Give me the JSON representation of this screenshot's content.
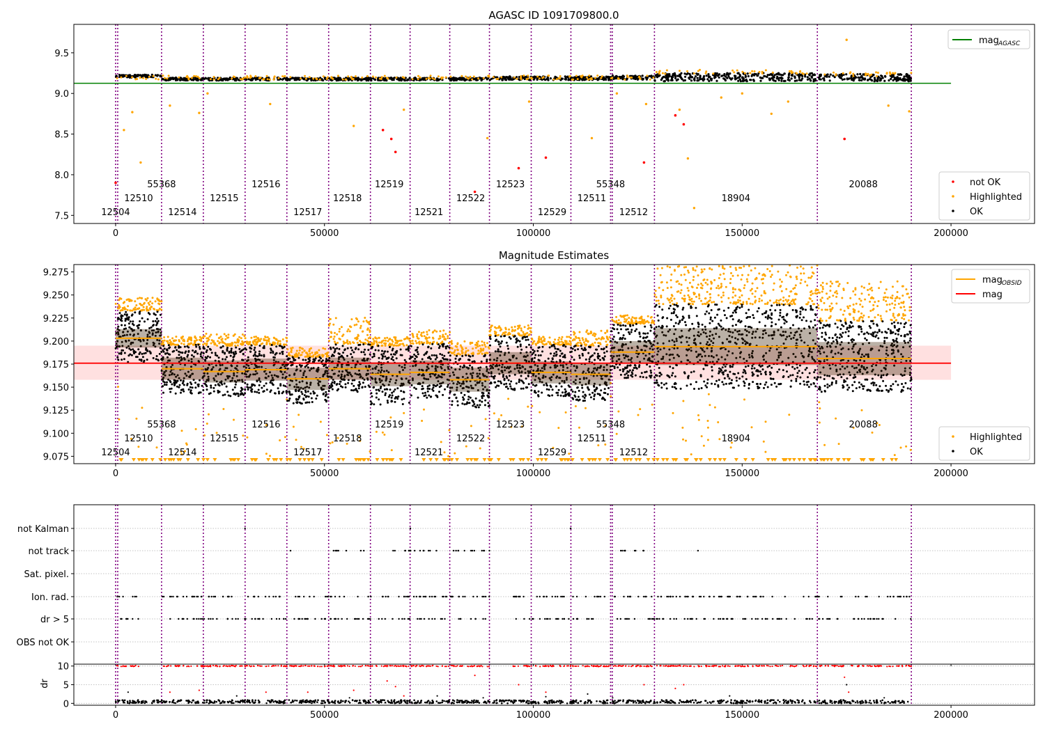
{
  "figure": {
    "colors": {
      "ok": "#000000",
      "highlighted": "#ffa500",
      "not_ok": "#ff0000",
      "mag_agasc": "#008000",
      "mag": "#ff0000",
      "mag_obsid": "#ffa500",
      "obs_boundary": "#800080",
      "band": "#ffcccc",
      "grid": "#b0b0b0"
    }
  },
  "chart_data": [
    {
      "type": "scatter",
      "title": "AGASC ID 1091709800.0",
      "xlim": [
        -10000,
        220000
      ],
      "ylim": [
        7.4,
        9.85
      ],
      "xticks": [
        0,
        50000,
        100000,
        150000,
        200000
      ],
      "xtick_labels": [
        "0",
        "50000",
        "100000",
        "150000",
        "200000"
      ],
      "yticks": [
        7.5,
        8.0,
        8.5,
        9.0,
        9.5
      ],
      "ytick_labels": [
        "7.5",
        "8.0",
        "8.5",
        "9.0",
        "9.5"
      ],
      "mag_agasc": 9.125,
      "mag_agasc_xrange": [
        -10000,
        200000
      ],
      "legend_top": {
        "position": "upper right",
        "entries": [
          {
            "label": "mag",
            "sub": "AGASC",
            "color": "#008000",
            "kind": "line"
          }
        ]
      },
      "legend_bottom": {
        "position": "lower right",
        "entries": [
          {
            "label": "not OK",
            "color": "#ff0000",
            "kind": "point"
          },
          {
            "label": "Highlighted",
            "color": "#ffa500",
            "kind": "point"
          },
          {
            "label": "OK",
            "color": "#000000",
            "kind": "point"
          }
        ]
      },
      "series": [
        {
          "name": "OK",
          "color": "#000000",
          "segments": [
            {
              "x": [
                0,
                11000
              ],
              "y": [
                9.195,
                9.23
              ]
            },
            {
              "x": [
                11000,
                89500
              ],
              "y": [
                9.16,
                9.195
              ]
            },
            {
              "x": [
                89500,
                118500
              ],
              "y": [
                9.165,
                9.21
              ]
            },
            {
              "x": [
                118500,
                129000
              ],
              "y": [
                9.17,
                9.22
              ]
            },
            {
              "x": [
                129000,
                168000
              ],
              "y": [
                9.15,
                9.25
              ]
            },
            {
              "x": [
                168000,
                190500
              ],
              "y": [
                9.15,
                9.24
              ]
            }
          ]
        },
        {
          "name": "not OK",
          "color": "#ff0000",
          "points": [
            [
              0,
              7.9
            ],
            [
              64000,
              8.55
            ],
            [
              66000,
              8.44
            ],
            [
              67000,
              8.28
            ],
            [
              86000,
              7.79
            ],
            [
              96500,
              8.08
            ],
            [
              103000,
              8.21
            ],
            [
              126500,
              8.15
            ],
            [
              134000,
              8.73
            ],
            [
              136000,
              8.62
            ],
            [
              174500,
              8.44
            ]
          ]
        },
        {
          "name": "Highlighted",
          "color": "#ffa500",
          "points": [
            [
              2000,
              8.55
            ],
            [
              4000,
              8.77
            ],
            [
              6000,
              8.15
            ],
            [
              13000,
              8.85
            ],
            [
              20000,
              8.76
            ],
            [
              22000,
              9.0
            ],
            [
              37000,
              8.87
            ],
            [
              57000,
              8.6
            ],
            [
              69000,
              8.8
            ],
            [
              89000,
              8.45
            ],
            [
              99000,
              8.9
            ],
            [
              114000,
              8.45
            ],
            [
              127000,
              8.87
            ],
            [
              135000,
              8.8
            ],
            [
              137000,
              8.2
            ],
            [
              138500,
              7.59
            ],
            [
              157000,
              8.75
            ],
            [
              175000,
              9.66
            ],
            [
              185000,
              8.85
            ],
            [
              190000,
              8.78
            ],
            [
              145000,
              8.95
            ],
            [
              161000,
              8.9
            ],
            [
              150000,
              9.0
            ],
            [
              120000,
              9.0
            ]
          ]
        }
      ],
      "obsids": [
        {
          "label": "12504",
          "x": 0,
          "row": 0
        },
        {
          "label": "12510",
          "x": 5500,
          "row": 1
        },
        {
          "label": "55368",
          "x": 11000,
          "row": 2
        },
        {
          "label": "12514",
          "x": 16000,
          "row": 0
        },
        {
          "label": "12515",
          "x": 26000,
          "row": 1
        },
        {
          "label": "12516",
          "x": 36000,
          "row": 2
        },
        {
          "label": "12517",
          "x": 46000,
          "row": 0
        },
        {
          "label": "12518",
          "x": 55500,
          "row": 1
        },
        {
          "label": "12519",
          "x": 65500,
          "row": 2
        },
        {
          "label": "12521",
          "x": 75000,
          "row": 0
        },
        {
          "label": "12522",
          "x": 85000,
          "row": 1
        },
        {
          "label": "12523",
          "x": 94500,
          "row": 2
        },
        {
          "label": "12529",
          "x": 104500,
          "row": 0
        },
        {
          "label": "12511",
          "x": 114000,
          "row": 1
        },
        {
          "label": "55348",
          "x": 118500,
          "row": 2
        },
        {
          "label": "12512",
          "x": 124000,
          "row": 0
        },
        {
          "label": "18904",
          "x": 148500,
          "row": 1
        },
        {
          "label": "20088",
          "x": 179000,
          "row": 2
        }
      ],
      "obs_boundaries": [
        0,
        500,
        11000,
        21000,
        31000,
        41000,
        51000,
        61000,
        70500,
        80000,
        89500,
        99500,
        109000,
        118500,
        118900,
        129000,
        168000,
        190500
      ]
    },
    {
      "type": "scatter",
      "title": "Magnitude Estimates",
      "xlim": [
        -10000,
        220000
      ],
      "ylim": [
        9.067,
        9.283
      ],
      "xticks": [
        0,
        50000,
        100000,
        150000,
        200000
      ],
      "xtick_labels": [
        "0",
        "50000",
        "100000",
        "150000",
        "200000"
      ],
      "yticks": [
        9.075,
        9.1,
        9.125,
        9.15,
        9.175,
        9.2,
        9.225,
        9.25,
        9.275
      ],
      "ytick_labels": [
        "9.075",
        "9.100",
        "9.125",
        "9.150",
        "9.175",
        "9.200",
        "9.225",
        "9.250",
        "9.275"
      ],
      "mag": 9.176,
      "mag_band": [
        9.158,
        9.195
      ],
      "mag_xrange": [
        -10000,
        200000
      ],
      "legend_top": {
        "position": "upper right",
        "entries": [
          {
            "label": "mag",
            "sub": "OBSID",
            "color": "#ffa500",
            "kind": "line"
          },
          {
            "label": "mag",
            "sub": "",
            "color": "#ff0000",
            "kind": "line"
          }
        ]
      },
      "legend_bottom": {
        "position": "lower right",
        "entries": [
          {
            "label": "Highlighted",
            "color": "#ffa500",
            "kind": "point"
          },
          {
            "label": "OK",
            "color": "#000000",
            "kind": "point"
          }
        ]
      },
      "obsid_mags": [
        {
          "x": [
            0,
            11000
          ],
          "mag": 9.203,
          "lo": 9.177,
          "hi": 9.232,
          "hl": [
            9.233,
            9.247
          ],
          "sd": 0.01
        },
        {
          "x": [
            11000,
            21000
          ],
          "mag": 9.17,
          "lo": 9.143,
          "hi": 9.196,
          "hl": [
            9.196,
            9.205
          ],
          "sd": 0.012
        },
        {
          "x": [
            21000,
            31000
          ],
          "mag": 9.167,
          "lo": 9.14,
          "hi": 9.195,
          "hl": [
            9.195,
            9.208
          ],
          "sd": 0.012
        },
        {
          "x": [
            31000,
            41000
          ],
          "mag": 9.169,
          "lo": 9.143,
          "hi": 9.196,
          "hl": [
            9.196,
            9.205
          ],
          "sd": 0.012
        },
        {
          "x": [
            41000,
            51000
          ],
          "mag": 9.159,
          "lo": 9.132,
          "hi": 9.183,
          "hl": [
            9.183,
            9.193
          ],
          "sd": 0.012
        },
        {
          "x": [
            51000,
            61000
          ],
          "mag": 9.17,
          "lo": 9.145,
          "hi": 9.197,
          "hl": [
            9.197,
            9.228
          ],
          "sd": 0.012
        },
        {
          "x": [
            61000,
            70500
          ],
          "mag": 9.164,
          "lo": 9.13,
          "hi": 9.195,
          "hl": [
            9.195,
            9.205
          ],
          "sd": 0.013
        },
        {
          "x": [
            70500,
            80000
          ],
          "mag": 9.166,
          "lo": 9.138,
          "hi": 9.197,
          "hl": [
            9.197,
            9.212
          ],
          "sd": 0.013
        },
        {
          "x": [
            80000,
            89500
          ],
          "mag": 9.158,
          "lo": 9.128,
          "hi": 9.185,
          "hl": [
            9.185,
            9.2
          ],
          "sd": 0.013
        },
        {
          "x": [
            89500,
            99500
          ],
          "mag": 9.176,
          "lo": 9.147,
          "hi": 9.206,
          "hl": [
            9.206,
            9.217
          ],
          "sd": 0.012
        },
        {
          "x": [
            99500,
            109000
          ],
          "mag": 9.166,
          "lo": 9.14,
          "hi": 9.196,
          "hl": [
            9.196,
            9.205
          ],
          "sd": 0.012
        },
        {
          "x": [
            109000,
            118500
          ],
          "mag": 9.164,
          "lo": 9.135,
          "hi": 9.195,
          "hl": [
            9.195,
            9.212
          ],
          "sd": 0.012
        },
        {
          "x": [
            118500,
            129000
          ],
          "mag": 9.188,
          "lo": 9.16,
          "hi": 9.219,
          "hl": [
            9.219,
            9.228
          ],
          "sd": 0.012
        },
        {
          "x": [
            129000,
            168000
          ],
          "mag": 9.194,
          "lo": 9.148,
          "hi": 9.24,
          "hl": [
            9.24,
            9.283
          ],
          "sd": 0.02
        },
        {
          "x": [
            168000,
            190500
          ],
          "mag": 9.181,
          "lo": 9.145,
          "hi": 9.222,
          "hl": [
            9.222,
            9.265
          ],
          "sd": 0.018
        }
      ],
      "obsids": [
        {
          "label": "12504",
          "x": 0,
          "row": 0
        },
        {
          "label": "12510",
          "x": 5500,
          "row": 1
        },
        {
          "label": "55368",
          "x": 11000,
          "row": 2
        },
        {
          "label": "12514",
          "x": 16000,
          "row": 0
        },
        {
          "label": "12515",
          "x": 26000,
          "row": 1
        },
        {
          "label": "12516",
          "x": 36000,
          "row": 2
        },
        {
          "label": "12517",
          "x": 46000,
          "row": 0
        },
        {
          "label": "12518",
          "x": 55500,
          "row": 1
        },
        {
          "label": "12519",
          "x": 65500,
          "row": 2
        },
        {
          "label": "12521",
          "x": 75000,
          "row": 0
        },
        {
          "label": "12522",
          "x": 85000,
          "row": 1
        },
        {
          "label": "12523",
          "x": 94500,
          "row": 2
        },
        {
          "label": "12529",
          "x": 104500,
          "row": 0
        },
        {
          "label": "12511",
          "x": 114000,
          "row": 1
        },
        {
          "label": "55348",
          "x": 118500,
          "row": 2
        },
        {
          "label": "12512",
          "x": 124000,
          "row": 0
        },
        {
          "label": "18904",
          "x": 148500,
          "row": 1
        },
        {
          "label": "20088",
          "x": 179000,
          "row": 2
        }
      ],
      "obs_boundaries": [
        0,
        500,
        11000,
        21000,
        31000,
        41000,
        51000,
        61000,
        70500,
        80000,
        89500,
        99500,
        109000,
        118500,
        118900,
        129000,
        168000,
        190500
      ]
    },
    {
      "type": "scatter",
      "title": "",
      "xlim": [
        -10000,
        220000
      ],
      "xticks": [
        0,
        50000,
        100000,
        150000,
        200000
      ],
      "xtick_labels": [
        "0",
        "50000",
        "100000",
        "150000",
        "200000"
      ],
      "flags": [
        "not Kalman",
        "not track",
        "Sat. pixel.",
        "Ion. rad.",
        "dr > 5",
        "OBS not OK"
      ],
      "flag_ranges": {
        "not Kalman": [
          [
            30500,
            31000
          ],
          [
            70500,
            71000
          ],
          [
            108500,
            109000
          ]
        ],
        "not track": [
          [
            41000,
            42000
          ],
          [
            52000,
            60000
          ],
          [
            60000,
            61000
          ],
          [
            65000,
            79000
          ],
          [
            80000,
            89500
          ],
          [
            120000,
            128000
          ],
          [
            139000,
            139500
          ]
        ],
        "Sat. pixel.": [],
        "Ion. rad.": [
          [
            0,
            5500
          ],
          [
            11000,
            89500
          ],
          [
            95000,
            118500
          ],
          [
            118500,
            129000
          ],
          [
            129000,
            174500
          ],
          [
            176000,
            190500
          ]
        ],
        "dr > 5": [
          [
            0,
            5500
          ],
          [
            11000,
            89500
          ],
          [
            95000,
            118500
          ],
          [
            118500,
            129000
          ],
          [
            129000,
            174500
          ],
          [
            176000,
            190500
          ]
        ],
        "OBS not OK": []
      },
      "dr": {
        "ylabel": "dr",
        "ylim": [
          -0.5,
          10.5
        ],
        "yticks": [
          0,
          5,
          10
        ],
        "ytick_labels": [
          "0",
          "5",
          "10"
        ],
        "clip_level": 10,
        "clip_ranges": [
          [
            0,
            5500
          ],
          [
            11000,
            89500
          ],
          [
            95000,
            118500
          ],
          [
            118500,
            174500
          ],
          [
            176000,
            190500
          ]
        ],
        "base_range": [
          0,
          190500
        ],
        "red_points": [
          [
            13000,
            3
          ],
          [
            20000,
            3.5
          ],
          [
            36000,
            3
          ],
          [
            46000,
            3
          ],
          [
            57000,
            3.5
          ],
          [
            65000,
            6
          ],
          [
            67000,
            4.5
          ],
          [
            69000,
            2
          ],
          [
            86000,
            7.5
          ],
          [
            96500,
            5
          ],
          [
            103000,
            3
          ],
          [
            126500,
            5
          ],
          [
            134000,
            4
          ],
          [
            136000,
            5
          ],
          [
            174500,
            7
          ],
          [
            175500,
            3
          ]
        ],
        "black_points": [
          [
            3000,
            3
          ],
          [
            29000,
            2
          ],
          [
            56000,
            1.5
          ],
          [
            61000,
            1
          ],
          [
            77000,
            2
          ],
          [
            88000,
            1.5
          ],
          [
            103000,
            1.8
          ],
          [
            113000,
            2.5
          ],
          [
            119000,
            1.5
          ],
          [
            147000,
            2
          ],
          [
            160000,
            1
          ],
          [
            175000,
            5
          ],
          [
            184000,
            1.5
          ]
        ]
      },
      "obs_boundaries": [
        0,
        500,
        11000,
        21000,
        31000,
        41000,
        51000,
        61000,
        70500,
        80000,
        89500,
        99500,
        109000,
        118500,
        118900,
        129000,
        168000,
        190500
      ]
    }
  ]
}
